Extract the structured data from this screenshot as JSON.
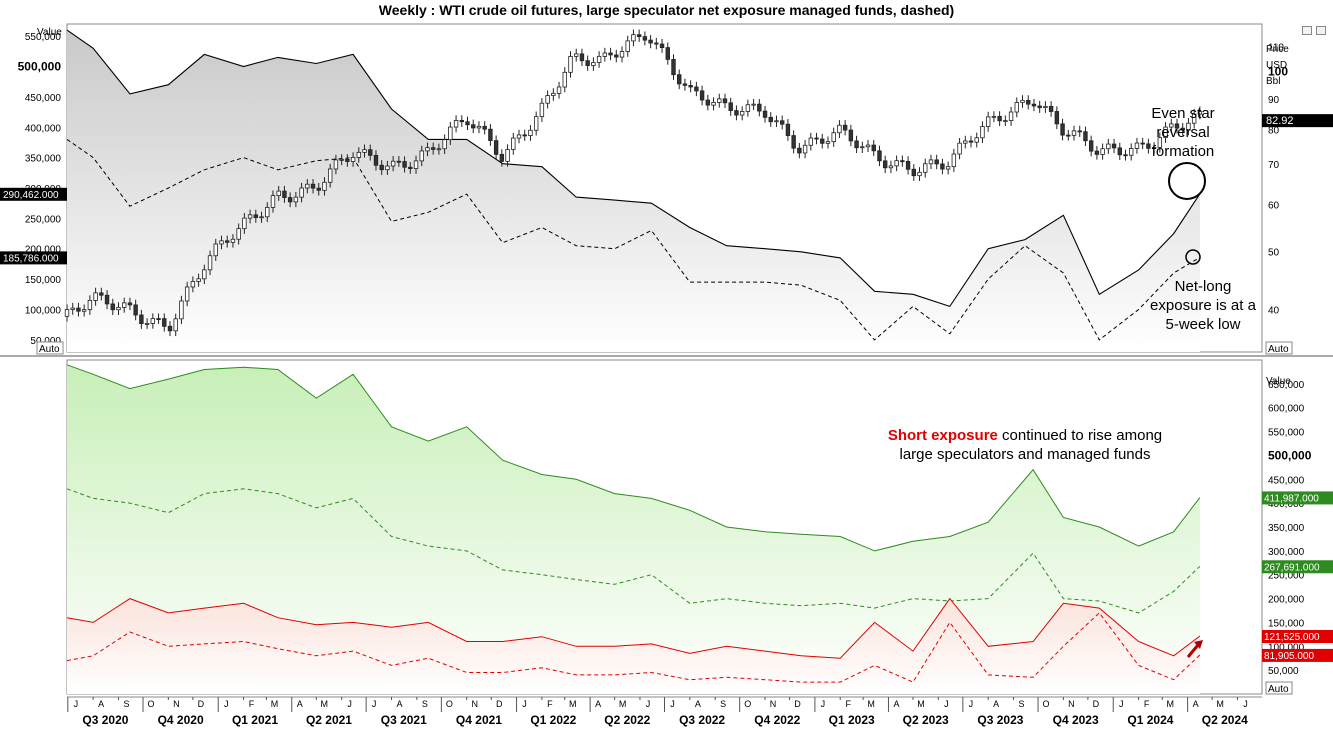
{
  "header": {
    "title": "Weekly : WTI crude oil futures, large speculator net exposure managed funds, dashed)"
  },
  "icons": {
    "window_restore": "window-restore-icon",
    "window_close": "window-close-icon"
  },
  "colors": {
    "long_series": "#000000",
    "short_total": "#2e8b1f",
    "short_green_fill": "#c8efb8",
    "short_red": "#e00000",
    "short_red_fill": "#fbe3dc",
    "tag_black": "#000000",
    "tag_green": "#2e8b1f",
    "tag_red": "#e00000"
  },
  "annotations": {
    "star": "Even star reversal formation",
    "netlong": "Net-long exposure is at a 5-week low",
    "short_exposure_highlight": "Short exposure",
    "short_exposure_rest1": " continued to rise among",
    "short_exposure_rest2": "large speculators and managed funds"
  },
  "chart_data": [
    {
      "type": "line",
      "name": "top-panel",
      "left_axis": {
        "label": "Value",
        "ticks": [
          "500,000",
          "450,000",
          "400,000",
          "350,000",
          "300,000",
          "250,000",
          "200,000",
          "150,000",
          "100,000",
          "50,000"
        ],
        "major": "500,000",
        "top_label": "550,000",
        "range": [
          30000,
          570000
        ],
        "button": "Auto"
      },
      "right_axis": {
        "label": [
          "Price",
          "USD",
          "Bbl"
        ],
        "ticks": [
          "110",
          "100",
          "90",
          "80",
          "70",
          "60",
          "50",
          "40"
        ],
        "major": "100",
        "range": [
          34,
          120
        ],
        "scale": "log",
        "button": "Auto"
      },
      "value_tags": [
        {
          "text": "290,462.000",
          "axis": "left",
          "value": 290462,
          "color": "#000000"
        },
        {
          "text": "185,786.000",
          "axis": "left",
          "value": 185786,
          "color": "#000000"
        },
        {
          "text": "82.92",
          "axis": "right",
          "value": 82.92,
          "color": "#000000"
        }
      ],
      "series": [
        {
          "style": "solid",
          "axis": "left",
          "x": [
            "2020-06-30",
            "2020-08-01",
            "2020-09-15",
            "2020-11-01",
            "2020-12-15",
            "2021-02-01",
            "2021-03-15",
            "2021-05-01",
            "2021-06-15",
            "2021-08-01",
            "2021-09-15",
            "2021-11-01",
            "2021-12-15",
            "2022-02-01",
            "2022-03-15",
            "2022-05-01",
            "2022-06-15",
            "2022-08-01",
            "2022-09-15",
            "2022-11-01",
            "2022-12-15",
            "2023-02-01",
            "2023-03-15",
            "2023-05-01",
            "2023-06-15",
            "2023-08-01",
            "2023-09-15",
            "2023-11-01",
            "2023-12-15",
            "2024-02-01",
            "2024-03-15",
            "2024-04-16"
          ],
          "values": [
            560000,
            530000,
            455000,
            470000,
            520000,
            500000,
            515000,
            505000,
            520000,
            430000,
            380000,
            380000,
            340000,
            335000,
            285000,
            280000,
            275000,
            235000,
            205000,
            200000,
            195000,
            185000,
            130000,
            125000,
            105000,
            200000,
            215000,
            255000,
            125000,
            165000,
            225000,
            290462
          ]
        },
        {
          "style": "dashed",
          "axis": "left",
          "x": [
            "2020-06-30",
            "2020-08-01",
            "2020-09-15",
            "2020-11-01",
            "2020-12-15",
            "2021-02-01",
            "2021-03-15",
            "2021-05-01",
            "2021-06-15",
            "2021-08-01",
            "2021-09-15",
            "2021-11-01",
            "2021-12-15",
            "2022-02-01",
            "2022-03-15",
            "2022-05-01",
            "2022-06-15",
            "2022-08-01",
            "2022-09-15",
            "2022-11-01",
            "2022-12-15",
            "2023-02-01",
            "2023-03-15",
            "2023-05-01",
            "2023-06-15",
            "2023-08-01",
            "2023-09-15",
            "2023-11-01",
            "2023-12-15",
            "2024-02-01",
            "2024-03-15",
            "2024-04-16"
          ],
          "values": [
            380000,
            350000,
            270000,
            300000,
            330000,
            350000,
            330000,
            345000,
            350000,
            245000,
            260000,
            290000,
            210000,
            235000,
            205000,
            200000,
            230000,
            145000,
            145000,
            145000,
            140000,
            115000,
            50000,
            105000,
            60000,
            150000,
            205000,
            160000,
            50000,
            100000,
            160000,
            185786
          ]
        },
        {
          "style": "candlestick",
          "axis": "right",
          "name": "WTI crude oil futures",
          "x": [
            "2020-06-30",
            "2020-08-01",
            "2020-09-15",
            "2020-11-01",
            "2020-12-15",
            "2021-02-01",
            "2021-03-15",
            "2021-05-01",
            "2021-06-15",
            "2021-08-01",
            "2021-09-15",
            "2021-11-01",
            "2021-12-15",
            "2022-02-01",
            "2022-03-10",
            "2022-04-15",
            "2022-06-10",
            "2022-08-01",
            "2022-09-15",
            "2022-11-01",
            "2022-12-15",
            "2023-02-01",
            "2023-03-15",
            "2023-05-01",
            "2023-06-15",
            "2023-08-01",
            "2023-09-25",
            "2023-11-01",
            "2023-12-15",
            "2024-02-01",
            "2024-03-15",
            "2024-04-16"
          ],
          "values": [
            39,
            41,
            40,
            38,
            47,
            55,
            63,
            64,
            72,
            70,
            74,
            82,
            72,
            88,
            104,
            102,
            118,
            92,
            85,
            87,
            75,
            78,
            72,
            70,
            70,
            81,
            92,
            80,
            72,
            75,
            82,
            83
          ]
        }
      ]
    },
    {
      "type": "area",
      "name": "bottom-panel",
      "right_axis": {
        "label": "Value",
        "ticks": [
          "650,000",
          "600,000",
          "550,000",
          "500,000",
          "450,000",
          "400,000",
          "350,000",
          "300,000",
          "250,000",
          "200,000",
          "150,000",
          "100,000",
          "50,000"
        ],
        "major": "500,000",
        "range": [
          0,
          700000
        ],
        "button": "Auto"
      },
      "value_tags": [
        {
          "text": "411,987.000",
          "value": 411987,
          "color": "#2e8b1f"
        },
        {
          "text": "267,691.000",
          "value": 267691,
          "color": "#2e8b1f"
        },
        {
          "text": "121,525.000",
          "value": 121525,
          "color": "#e00000"
        },
        {
          "text": "81,905.000",
          "value": 81905,
          "color": "#e00000"
        }
      ],
      "x_axis": {
        "months": [
          "J",
          "A",
          "S",
          "O",
          "N",
          "D",
          "J",
          "F",
          "M",
          "A",
          "M",
          "J",
          "J",
          "A",
          "S",
          "O",
          "N",
          "D",
          "J",
          "F",
          "M",
          "A",
          "M",
          "J",
          "J",
          "A",
          "S",
          "O",
          "N",
          "D",
          "J",
          "F",
          "M",
          "A",
          "M",
          "J",
          "J",
          "A",
          "S",
          "O",
          "N",
          "D",
          "J",
          "F",
          "M",
          "A",
          "M",
          "J"
        ],
        "month_start": "2020-07-01",
        "quarters": [
          "Q3 2020",
          "Q4 2020",
          "Q1 2021",
          "Q2 2021",
          "Q3 2021",
          "Q4 2021",
          "Q1 2022",
          "Q2 2022",
          "Q3 2022",
          "Q4 2022",
          "Q1 2023",
          "Q2 2023",
          "Q3 2023",
          "Q4 2023",
          "Q1 2024",
          "Q2 2024"
        ]
      },
      "series": [
        {
          "style": "solid-green-area",
          "x": [
            "2020-06-30",
            "2020-08-01",
            "2020-09-15",
            "2020-11-01",
            "2020-12-15",
            "2021-02-01",
            "2021-03-15",
            "2021-05-01",
            "2021-06-15",
            "2021-08-01",
            "2021-09-15",
            "2021-11-01",
            "2021-12-15",
            "2022-02-01",
            "2022-03-15",
            "2022-05-01",
            "2022-06-15",
            "2022-08-01",
            "2022-09-15",
            "2022-11-01",
            "2022-12-15",
            "2023-02-01",
            "2023-03-15",
            "2023-05-01",
            "2023-06-15",
            "2023-08-01",
            "2023-09-25",
            "2023-11-01",
            "2023-12-15",
            "2024-02-01",
            "2024-03-15",
            "2024-04-16"
          ],
          "values": [
            690000,
            670000,
            640000,
            660000,
            680000,
            685000,
            680000,
            620000,
            670000,
            560000,
            530000,
            560000,
            490000,
            460000,
            450000,
            420000,
            410000,
            385000,
            350000,
            340000,
            335000,
            330000,
            300000,
            320000,
            330000,
            360000,
            470000,
            370000,
            350000,
            310000,
            340000,
            411987
          ]
        },
        {
          "style": "dashed-green",
          "x": [
            "2020-06-30",
            "2020-08-01",
            "2020-09-15",
            "2020-11-01",
            "2020-12-15",
            "2021-02-01",
            "2021-03-15",
            "2021-05-01",
            "2021-06-15",
            "2021-08-01",
            "2021-09-15",
            "2021-11-01",
            "2021-12-15",
            "2022-02-01",
            "2022-03-15",
            "2022-05-01",
            "2022-06-15",
            "2022-08-01",
            "2022-09-15",
            "2022-11-01",
            "2022-12-15",
            "2023-02-01",
            "2023-03-15",
            "2023-05-01",
            "2023-06-15",
            "2023-08-01",
            "2023-09-25",
            "2023-11-01",
            "2023-12-15",
            "2024-02-01",
            "2024-03-15",
            "2024-04-16"
          ],
          "values": [
            430000,
            410000,
            400000,
            380000,
            420000,
            430000,
            420000,
            390000,
            410000,
            330000,
            310000,
            300000,
            260000,
            250000,
            240000,
            230000,
            250000,
            190000,
            200000,
            190000,
            185000,
            190000,
            180000,
            200000,
            195000,
            200000,
            295000,
            200000,
            195000,
            170000,
            215000,
            267691
          ]
        },
        {
          "style": "solid-red-area",
          "x": [
            "2020-06-30",
            "2020-08-01",
            "2020-09-15",
            "2020-11-01",
            "2020-12-15",
            "2021-02-01",
            "2021-03-15",
            "2021-05-01",
            "2021-06-15",
            "2021-08-01",
            "2021-09-15",
            "2021-11-01",
            "2021-12-15",
            "2022-02-01",
            "2022-03-15",
            "2022-05-01",
            "2022-06-15",
            "2022-08-01",
            "2022-09-15",
            "2022-11-01",
            "2022-12-15",
            "2023-02-01",
            "2023-03-15",
            "2023-05-01",
            "2023-06-15",
            "2023-08-01",
            "2023-09-25",
            "2023-11-01",
            "2023-12-15",
            "2024-02-01",
            "2024-03-15",
            "2024-04-16"
          ],
          "values": [
            160000,
            150000,
            200000,
            170000,
            180000,
            190000,
            160000,
            145000,
            150000,
            140000,
            150000,
            110000,
            110000,
            120000,
            100000,
            100000,
            105000,
            85000,
            100000,
            90000,
            80000,
            75000,
            150000,
            90000,
            200000,
            100000,
            110000,
            190000,
            180000,
            110000,
            80000,
            121525
          ]
        },
        {
          "style": "dashed-red",
          "x": [
            "2020-06-30",
            "2020-08-01",
            "2020-09-15",
            "2020-11-01",
            "2020-12-15",
            "2021-02-01",
            "2021-03-15",
            "2021-05-01",
            "2021-06-15",
            "2021-08-01",
            "2021-09-15",
            "2021-11-01",
            "2021-12-15",
            "2022-02-01",
            "2022-03-15",
            "2022-05-01",
            "2022-06-15",
            "2022-08-01",
            "2022-09-15",
            "2022-11-01",
            "2022-12-15",
            "2023-02-01",
            "2023-03-15",
            "2023-05-01",
            "2023-06-15",
            "2023-08-01",
            "2023-09-25",
            "2023-11-01",
            "2023-12-15",
            "2024-02-01",
            "2024-03-15",
            "2024-04-16"
          ],
          "values": [
            70000,
            80000,
            130000,
            100000,
            105000,
            110000,
            95000,
            80000,
            90000,
            60000,
            75000,
            45000,
            45000,
            55000,
            40000,
            40000,
            45000,
            30000,
            35000,
            30000,
            25000,
            25000,
            60000,
            25000,
            150000,
            40000,
            35000,
            100000,
            170000,
            60000,
            30000,
            81905
          ]
        }
      ]
    }
  ]
}
